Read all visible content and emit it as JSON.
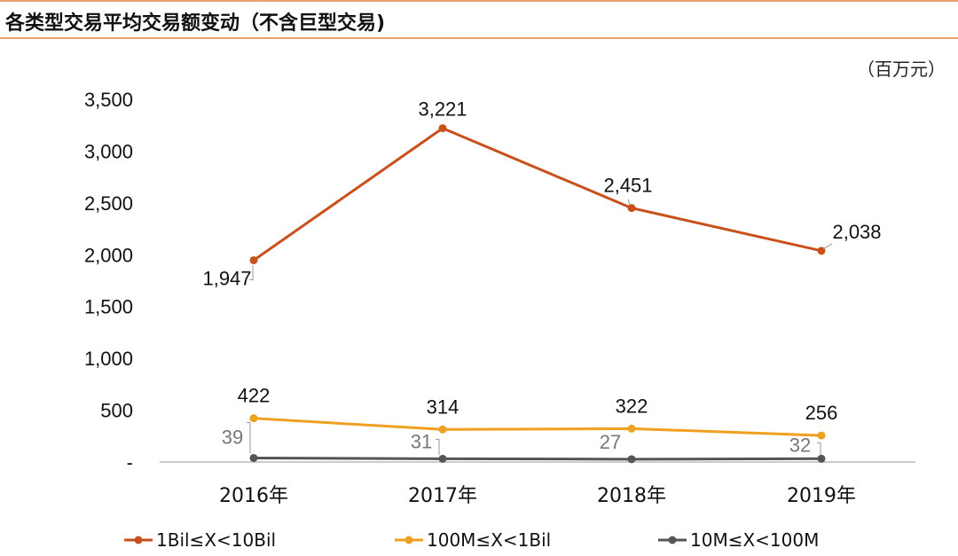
{
  "header": {
    "title": "各类型交易平均交易额变动（不含巨型交易)",
    "unit": "（百万元）"
  },
  "chart_data": {
    "type": "line",
    "categories": [
      "2016年",
      "2017年",
      "2018年",
      "2019年"
    ],
    "ylim": [
      0,
      3500
    ],
    "yticks": [
      {
        "value": 0,
        "label": "-"
      },
      {
        "value": 500,
        "label": "500"
      },
      {
        "value": 1000,
        "label": "1,000"
      },
      {
        "value": 1500,
        "label": "1,500"
      },
      {
        "value": 2000,
        "label": "2,000"
      },
      {
        "value": 2500,
        "label": "2,500"
      },
      {
        "value": 3000,
        "label": "3,000"
      },
      {
        "value": 3500,
        "label": "3,500"
      }
    ],
    "grid": false,
    "legend_position": "bottom",
    "series": [
      {
        "name": "1Bil≤X<10Bil",
        "color": "#c8501a",
        "values": [
          1947,
          3221,
          2451,
          2038
        ],
        "labels": [
          "1,947",
          "3,221",
          "2,451",
          "2,038"
        ],
        "label_color": "#111111"
      },
      {
        "name": "100M≤X<1Bil",
        "color": "#f0a020",
        "values": [
          422,
          314,
          322,
          256
        ],
        "labels": [
          "422",
          "314",
          "322",
          "256"
        ],
        "label_color": "#111111"
      },
      {
        "name": "10M≤X<100M",
        "color": "#555555",
        "values": [
          39,
          31,
          27,
          32
        ],
        "labels": [
          "39",
          "31",
          "27",
          "32"
        ],
        "label_color": "#777777"
      }
    ]
  }
}
